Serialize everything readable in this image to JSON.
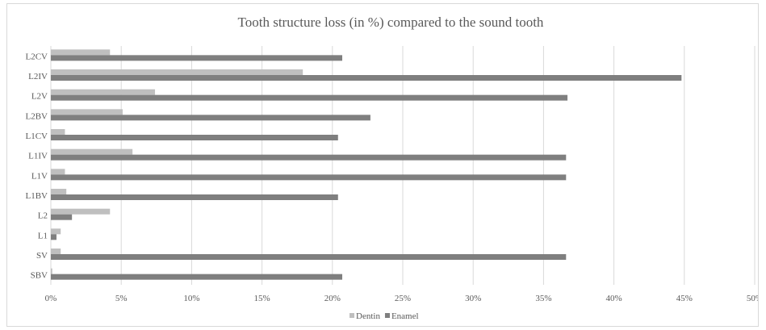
{
  "chart_data": {
    "type": "bar",
    "orientation": "horizontal",
    "title": "Tooth structure loss (in %) compared to the sound tooth",
    "categories": [
      "L2CV",
      "L2IV",
      "L2V",
      "L2BV",
      "L1CV",
      "L1IV",
      "L1V",
      "L1BV",
      "L2",
      "L1",
      "SV",
      "SBV"
    ],
    "series": [
      {
        "name": "Dentin",
        "color": "#bfbfbf",
        "values": [
          4.2,
          17.9,
          7.4,
          5.1,
          1.0,
          5.8,
          1.0,
          1.1,
          4.2,
          0.7,
          0.7,
          0.1
        ]
      },
      {
        "name": "Enamel",
        "color": "#7f7f7f",
        "values": [
          20.7,
          44.8,
          36.7,
          22.7,
          20.4,
          36.6,
          36.6,
          20.4,
          1.5,
          0.4,
          36.6,
          20.7
        ]
      }
    ],
    "xlim": [
      0,
      50
    ],
    "xticks": [
      "0%",
      "5%",
      "10%",
      "15%",
      "20%",
      "25%",
      "30%",
      "35%",
      "40%",
      "45%",
      "50%"
    ],
    "grid": true,
    "legend": "bottom"
  }
}
